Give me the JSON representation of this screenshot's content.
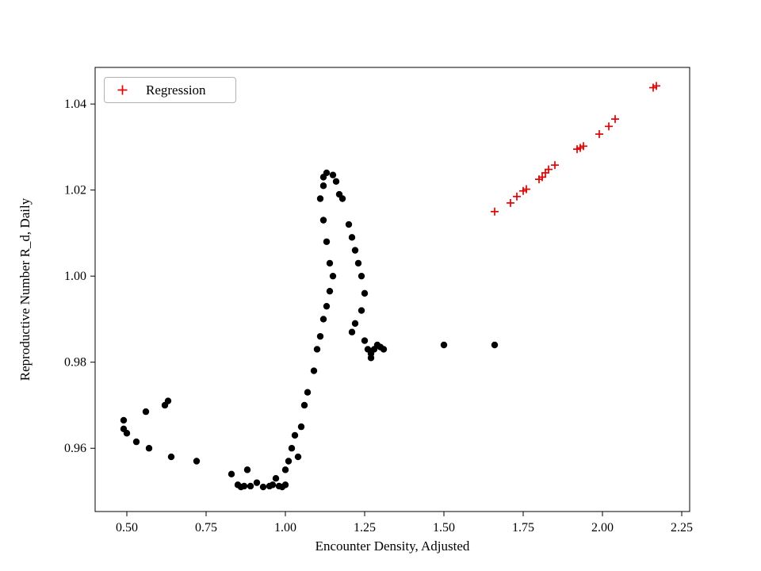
{
  "chart_data": {
    "type": "scatter",
    "title": "",
    "xlabel": "Encounter Density, Adjusted",
    "ylabel": "Reproductive Number R_d, Daily",
    "xlim": [
      0.4,
      2.275
    ],
    "ylim": [
      0.9453,
      1.0485
    ],
    "xticks": [
      "0.50",
      "0.75",
      "1.00",
      "1.25",
      "1.50",
      "1.75",
      "2.00",
      "2.25"
    ],
    "yticks": [
      "0.96",
      "0.98",
      "1.00",
      "1.02",
      "1.04"
    ],
    "grid": false,
    "legend": {
      "position": "upper left",
      "entries": [
        {
          "label": "Regression",
          "marker": "plus",
          "color": "#e60000"
        }
      ]
    },
    "series": [
      {
        "name": "observations",
        "marker": "circle",
        "color": "#000000",
        "points": [
          [
            0.49,
            0.9665
          ],
          [
            0.49,
            0.9645
          ],
          [
            0.5,
            0.9635
          ],
          [
            0.53,
            0.9615
          ],
          [
            0.56,
            0.9685
          ],
          [
            0.57,
            0.96
          ],
          [
            0.62,
            0.97
          ],
          [
            0.63,
            0.971
          ],
          [
            0.64,
            0.958
          ],
          [
            0.72,
            0.957
          ],
          [
            0.83,
            0.954
          ],
          [
            0.85,
            0.9515
          ],
          [
            0.86,
            0.951
          ],
          [
            0.87,
            0.9512
          ],
          [
            0.88,
            0.955
          ],
          [
            0.89,
            0.9512
          ],
          [
            0.91,
            0.952
          ],
          [
            0.93,
            0.951
          ],
          [
            0.95,
            0.9512
          ],
          [
            0.96,
            0.9515
          ],
          [
            0.97,
            0.953
          ],
          [
            0.98,
            0.9512
          ],
          [
            0.99,
            0.951
          ],
          [
            1.0,
            0.9515
          ],
          [
            1.0,
            0.955
          ],
          [
            1.01,
            0.957
          ],
          [
            1.02,
            0.96
          ],
          [
            1.03,
            0.963
          ],
          [
            1.04,
            0.958
          ],
          [
            1.05,
            0.965
          ],
          [
            1.06,
            0.97
          ],
          [
            1.07,
            0.973
          ],
          [
            1.09,
            0.978
          ],
          [
            1.1,
            0.983
          ],
          [
            1.11,
            0.986
          ],
          [
            1.12,
            0.99
          ],
          [
            1.13,
            0.993
          ],
          [
            1.14,
            0.9965
          ],
          [
            1.15,
            1.0
          ],
          [
            1.14,
            1.003
          ],
          [
            1.13,
            1.008
          ],
          [
            1.12,
            1.013
          ],
          [
            1.11,
            1.018
          ],
          [
            1.12,
            1.021
          ],
          [
            1.12,
            1.023
          ],
          [
            1.13,
            1.024
          ],
          [
            1.15,
            1.0235
          ],
          [
            1.16,
            1.022
          ],
          [
            1.17,
            1.019
          ],
          [
            1.18,
            1.018
          ],
          [
            1.2,
            1.012
          ],
          [
            1.21,
            1.009
          ],
          [
            1.22,
            1.006
          ],
          [
            1.23,
            1.003
          ],
          [
            1.24,
            1.0
          ],
          [
            1.25,
            0.996
          ],
          [
            1.24,
            0.992
          ],
          [
            1.22,
            0.989
          ],
          [
            1.21,
            0.987
          ],
          [
            1.25,
            0.985
          ],
          [
            1.26,
            0.983
          ],
          [
            1.27,
            0.982
          ],
          [
            1.28,
            0.983
          ],
          [
            1.29,
            0.984
          ],
          [
            1.3,
            0.9835
          ],
          [
            1.31,
            0.983
          ],
          [
            1.27,
            0.981
          ],
          [
            1.5,
            0.984
          ],
          [
            1.66,
            0.984
          ]
        ]
      },
      {
        "name": "Regression",
        "marker": "plus",
        "color": "#e60000",
        "points": [
          [
            1.66,
            1.015
          ],
          [
            1.71,
            1.017
          ],
          [
            1.73,
            1.0185
          ],
          [
            1.75,
            1.0198
          ],
          [
            1.76,
            1.0202
          ],
          [
            1.8,
            1.0225
          ],
          [
            1.81,
            1.023
          ],
          [
            1.82,
            1.024
          ],
          [
            1.83,
            1.0248
          ],
          [
            1.85,
            1.0258
          ],
          [
            1.92,
            1.0295
          ],
          [
            1.93,
            1.0298
          ],
          [
            1.94,
            1.0302
          ],
          [
            1.99,
            1.033
          ],
          [
            2.02,
            1.0348
          ],
          [
            2.04,
            1.0365
          ],
          [
            2.16,
            1.0438
          ],
          [
            2.17,
            1.0442
          ]
        ]
      }
    ]
  }
}
